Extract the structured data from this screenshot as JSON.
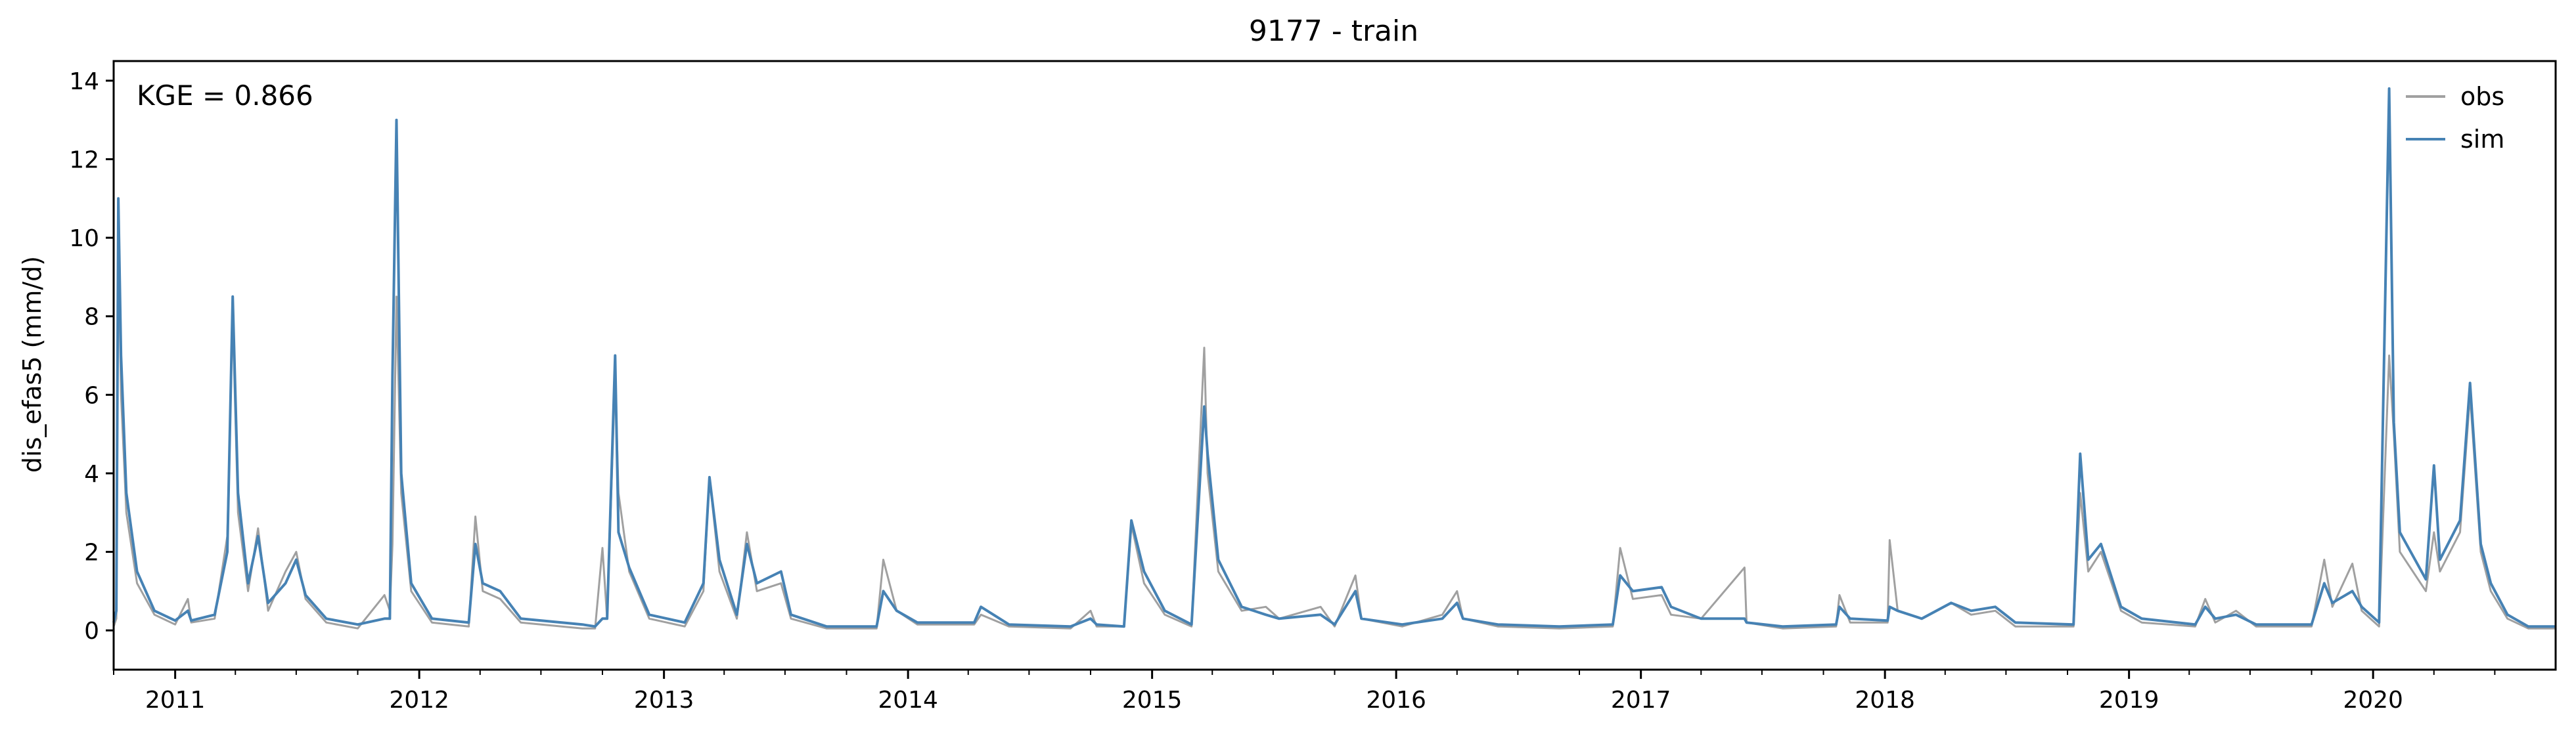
{
  "chart_data": {
    "type": "line",
    "title": "9177 - train",
    "xlabel": "",
    "ylabel": "dis_efas5 (mm/d)",
    "annotation": "KGE = 0.866",
    "x_range": [
      "2010-10-01",
      "2020-09-30"
    ],
    "ylim": [
      -1,
      14.5
    ],
    "y_ticks": [
      0,
      2,
      4,
      6,
      8,
      10,
      12,
      14
    ],
    "x_ticks": [
      "2011",
      "2012",
      "2013",
      "2014",
      "2015",
      "2016",
      "2017",
      "2018",
      "2019",
      "2020"
    ],
    "grid": false,
    "legend_position": "top-right",
    "series": [
      {
        "name": "obs",
        "color": "#a0a0a0",
        "points": [
          [
            "2010-10-01",
            0.1
          ],
          [
            "2010-10-05",
            0.3
          ],
          [
            "2010-10-08",
            10.0
          ],
          [
            "2010-10-12",
            6.0
          ],
          [
            "2010-10-20",
            3.0
          ],
          [
            "2010-11-05",
            1.2
          ],
          [
            "2010-12-01",
            0.4
          ],
          [
            "2011-01-01",
            0.15
          ],
          [
            "2011-01-20",
            0.8
          ],
          [
            "2011-01-25",
            0.2
          ],
          [
            "2011-03-01",
            0.3
          ],
          [
            "2011-03-20",
            2.4
          ],
          [
            "2011-03-28",
            8.0
          ],
          [
            "2011-04-05",
            3.0
          ],
          [
            "2011-04-20",
            1.0
          ],
          [
            "2011-05-05",
            2.6
          ],
          [
            "2011-05-20",
            0.5
          ],
          [
            "2011-06-15",
            1.5
          ],
          [
            "2011-07-01",
            2.0
          ],
          [
            "2011-07-15",
            0.8
          ],
          [
            "2011-08-15",
            0.2
          ],
          [
            "2011-10-01",
            0.05
          ],
          [
            "2011-11-10",
            0.9
          ],
          [
            "2011-11-18",
            0.5
          ],
          [
            "2011-11-22",
            2.2
          ],
          [
            "2011-11-28",
            8.5
          ],
          [
            "2011-12-05",
            3.5
          ],
          [
            "2011-12-20",
            1.0
          ],
          [
            "2012-01-20",
            0.2
          ],
          [
            "2012-03-15",
            0.1
          ],
          [
            "2012-03-25",
            2.9
          ],
          [
            "2012-04-05",
            1.0
          ],
          [
            "2012-05-01",
            0.8
          ],
          [
            "2012-06-01",
            0.2
          ],
          [
            "2012-09-01",
            0.05
          ],
          [
            "2012-09-20",
            0.05
          ],
          [
            "2012-10-01",
            2.1
          ],
          [
            "2012-10-08",
            0.3
          ],
          [
            "2012-10-20",
            6.5
          ],
          [
            "2012-10-25",
            3.5
          ],
          [
            "2012-11-10",
            1.5
          ],
          [
            "2012-12-10",
            0.3
          ],
          [
            "2013-02-01",
            0.1
          ],
          [
            "2013-03-01",
            1.0
          ],
          [
            "2013-03-10",
            3.9
          ],
          [
            "2013-03-25",
            1.5
          ],
          [
            "2013-04-20",
            0.3
          ],
          [
            "2013-05-05",
            2.5
          ],
          [
            "2013-05-20",
            1.0
          ],
          [
            "2013-06-25",
            1.2
          ],
          [
            "2013-07-10",
            0.3
          ],
          [
            "2013-09-01",
            0.05
          ],
          [
            "2013-11-15",
            0.05
          ],
          [
            "2013-11-25",
            1.8
          ],
          [
            "2013-12-15",
            0.5
          ],
          [
            "2014-01-15",
            0.15
          ],
          [
            "2014-04-10",
            0.15
          ],
          [
            "2014-04-20",
            0.4
          ],
          [
            "2014-06-01",
            0.1
          ],
          [
            "2014-09-01",
            0.05
          ],
          [
            "2014-10-01",
            0.5
          ],
          [
            "2014-10-10",
            0.1
          ],
          [
            "2014-11-20",
            0.1
          ],
          [
            "2014-12-01",
            2.7
          ],
          [
            "2014-12-20",
            1.2
          ],
          [
            "2015-01-20",
            0.4
          ],
          [
            "2015-03-01",
            0.1
          ],
          [
            "2015-03-20",
            7.2
          ],
          [
            "2015-03-25",
            4.0
          ],
          [
            "2015-04-10",
            1.5
          ],
          [
            "2015-05-15",
            0.5
          ],
          [
            "2015-06-20",
            0.6
          ],
          [
            "2015-07-10",
            0.3
          ],
          [
            "2015-09-10",
            0.6
          ],
          [
            "2015-10-01",
            0.1
          ],
          [
            "2015-11-01",
            1.4
          ],
          [
            "2015-11-10",
            0.3
          ],
          [
            "2016-01-10",
            0.1
          ],
          [
            "2016-03-10",
            0.4
          ],
          [
            "2016-04-01",
            1.0
          ],
          [
            "2016-04-10",
            0.3
          ],
          [
            "2016-06-01",
            0.1
          ],
          [
            "2016-09-01",
            0.05
          ],
          [
            "2016-11-20",
            0.1
          ],
          [
            "2016-12-01",
            2.1
          ],
          [
            "2016-12-20",
            0.8
          ],
          [
            "2017-02-01",
            0.9
          ],
          [
            "2017-02-15",
            0.4
          ],
          [
            "2017-04-01",
            0.3
          ],
          [
            "2017-06-05",
            1.6
          ],
          [
            "2017-06-08",
            0.2
          ],
          [
            "2017-08-01",
            0.05
          ],
          [
            "2017-10-20",
            0.1
          ],
          [
            "2017-10-25",
            0.9
          ],
          [
            "2017-11-10",
            0.2
          ],
          [
            "2018-01-05",
            0.2
          ],
          [
            "2018-01-08",
            2.3
          ],
          [
            "2018-01-20",
            0.5
          ],
          [
            "2018-02-25",
            0.3
          ],
          [
            "2018-04-10",
            0.7
          ],
          [
            "2018-05-10",
            0.4
          ],
          [
            "2018-06-15",
            0.5
          ],
          [
            "2018-07-15",
            0.1
          ],
          [
            "2018-10-10",
            0.1
          ],
          [
            "2018-10-20",
            3.5
          ],
          [
            "2018-11-01",
            1.5
          ],
          [
            "2018-11-20",
            2.0
          ],
          [
            "2018-12-20",
            0.5
          ],
          [
            "2019-01-20",
            0.2
          ],
          [
            "2019-04-10",
            0.1
          ],
          [
            "2019-04-25",
            0.8
          ],
          [
            "2019-05-10",
            0.2
          ],
          [
            "2019-06-10",
            0.5
          ],
          [
            "2019-07-10",
            0.1
          ],
          [
            "2019-10-01",
            0.1
          ],
          [
            "2019-10-20",
            1.8
          ],
          [
            "2019-11-01",
            0.6
          ],
          [
            "2019-12-01",
            1.7
          ],
          [
            "2019-12-15",
            0.5
          ],
          [
            "2020-01-10",
            0.1
          ],
          [
            "2020-01-25",
            7.0
          ],
          [
            "2020-02-01",
            5.0
          ],
          [
            "2020-02-10",
            2.0
          ],
          [
            "2020-03-20",
            1.0
          ],
          [
            "2020-04-01",
            2.5
          ],
          [
            "2020-04-10",
            1.5
          ],
          [
            "2020-05-10",
            2.5
          ],
          [
            "2020-05-25",
            6.0
          ],
          [
            "2020-06-10",
            2.0
          ],
          [
            "2020-06-25",
            1.0
          ],
          [
            "2020-07-20",
            0.3
          ],
          [
            "2020-08-20",
            0.05
          ],
          [
            "2020-09-30",
            0.05
          ]
        ]
      },
      {
        "name": "sim",
        "color": "#4682b4",
        "points": [
          [
            "2010-10-01",
            0.2
          ],
          [
            "2010-10-05",
            0.5
          ],
          [
            "2010-10-08",
            11.0
          ],
          [
            "2010-10-12",
            7.0
          ],
          [
            "2010-10-20",
            3.5
          ],
          [
            "2010-11-05",
            1.5
          ],
          [
            "2010-12-01",
            0.5
          ],
          [
            "2011-01-01",
            0.25
          ],
          [
            "2011-01-20",
            0.5
          ],
          [
            "2011-01-25",
            0.25
          ],
          [
            "2011-03-01",
            0.4
          ],
          [
            "2011-03-20",
            2.0
          ],
          [
            "2011-03-28",
            8.5
          ],
          [
            "2011-04-05",
            3.5
          ],
          [
            "2011-04-20",
            1.2
          ],
          [
            "2011-05-05",
            2.4
          ],
          [
            "2011-05-20",
            0.7
          ],
          [
            "2011-06-15",
            1.2
          ],
          [
            "2011-07-01",
            1.8
          ],
          [
            "2011-07-15",
            0.9
          ],
          [
            "2011-08-15",
            0.3
          ],
          [
            "2011-10-01",
            0.15
          ],
          [
            "2011-11-10",
            0.3
          ],
          [
            "2011-11-18",
            0.3
          ],
          [
            "2011-11-22",
            6.5
          ],
          [
            "2011-11-28",
            13.0
          ],
          [
            "2011-12-05",
            4.0
          ],
          [
            "2011-12-20",
            1.2
          ],
          [
            "2012-01-20",
            0.3
          ],
          [
            "2012-03-15",
            0.2
          ],
          [
            "2012-03-25",
            2.2
          ],
          [
            "2012-04-05",
            1.2
          ],
          [
            "2012-05-01",
            1.0
          ],
          [
            "2012-06-01",
            0.3
          ],
          [
            "2012-09-01",
            0.15
          ],
          [
            "2012-09-20",
            0.1
          ],
          [
            "2012-10-01",
            0.3
          ],
          [
            "2012-10-08",
            0.3
          ],
          [
            "2012-10-20",
            7.0
          ],
          [
            "2012-10-25",
            2.5
          ],
          [
            "2012-11-10",
            1.6
          ],
          [
            "2012-12-10",
            0.4
          ],
          [
            "2013-02-01",
            0.2
          ],
          [
            "2013-03-01",
            1.2
          ],
          [
            "2013-03-10",
            3.9
          ],
          [
            "2013-03-25",
            1.8
          ],
          [
            "2013-04-20",
            0.4
          ],
          [
            "2013-05-05",
            2.2
          ],
          [
            "2013-05-20",
            1.2
          ],
          [
            "2013-06-25",
            1.5
          ],
          [
            "2013-07-10",
            0.4
          ],
          [
            "2013-09-01",
            0.1
          ],
          [
            "2013-11-15",
            0.1
          ],
          [
            "2013-11-25",
            1.0
          ],
          [
            "2013-12-15",
            0.5
          ],
          [
            "2014-01-15",
            0.2
          ],
          [
            "2014-04-10",
            0.2
          ],
          [
            "2014-04-20",
            0.6
          ],
          [
            "2014-06-01",
            0.15
          ],
          [
            "2014-09-01",
            0.1
          ],
          [
            "2014-10-01",
            0.3
          ],
          [
            "2014-10-10",
            0.15
          ],
          [
            "2014-11-20",
            0.1
          ],
          [
            "2014-12-01",
            2.8
          ],
          [
            "2014-12-20",
            1.5
          ],
          [
            "2015-01-20",
            0.5
          ],
          [
            "2015-03-01",
            0.15
          ],
          [
            "2015-03-20",
            5.7
          ],
          [
            "2015-03-25",
            4.5
          ],
          [
            "2015-04-10",
            1.8
          ],
          [
            "2015-05-15",
            0.6
          ],
          [
            "2015-06-20",
            0.4
          ],
          [
            "2015-07-10",
            0.3
          ],
          [
            "2015-09-10",
            0.4
          ],
          [
            "2015-10-01",
            0.15
          ],
          [
            "2015-11-01",
            1.0
          ],
          [
            "2015-11-10",
            0.3
          ],
          [
            "2016-01-10",
            0.15
          ],
          [
            "2016-03-10",
            0.3
          ],
          [
            "2016-04-01",
            0.7
          ],
          [
            "2016-04-10",
            0.3
          ],
          [
            "2016-06-01",
            0.15
          ],
          [
            "2016-09-01",
            0.1
          ],
          [
            "2016-11-20",
            0.15
          ],
          [
            "2016-12-01",
            1.4
          ],
          [
            "2016-12-20",
            1.0
          ],
          [
            "2017-02-01",
            1.1
          ],
          [
            "2017-02-15",
            0.6
          ],
          [
            "2017-04-01",
            0.3
          ],
          [
            "2017-06-05",
            0.3
          ],
          [
            "2017-06-08",
            0.2
          ],
          [
            "2017-08-01",
            0.1
          ],
          [
            "2017-10-20",
            0.15
          ],
          [
            "2017-10-25",
            0.6
          ],
          [
            "2017-11-10",
            0.3
          ],
          [
            "2018-01-05",
            0.25
          ],
          [
            "2018-01-08",
            0.6
          ],
          [
            "2018-01-20",
            0.5
          ],
          [
            "2018-02-25",
            0.3
          ],
          [
            "2018-04-10",
            0.7
          ],
          [
            "2018-05-10",
            0.5
          ],
          [
            "2018-06-15",
            0.6
          ],
          [
            "2018-07-15",
            0.2
          ],
          [
            "2018-10-10",
            0.15
          ],
          [
            "2018-10-20",
            4.5
          ],
          [
            "2018-11-01",
            1.8
          ],
          [
            "2018-11-20",
            2.2
          ],
          [
            "2018-12-20",
            0.6
          ],
          [
            "2019-01-20",
            0.3
          ],
          [
            "2019-04-10",
            0.15
          ],
          [
            "2019-04-25",
            0.6
          ],
          [
            "2019-05-10",
            0.3
          ],
          [
            "2019-06-10",
            0.4
          ],
          [
            "2019-07-10",
            0.15
          ],
          [
            "2019-10-01",
            0.15
          ],
          [
            "2019-10-20",
            1.2
          ],
          [
            "2019-11-01",
            0.7
          ],
          [
            "2019-12-01",
            1.0
          ],
          [
            "2019-12-15",
            0.6
          ],
          [
            "2020-01-10",
            0.2
          ],
          [
            "2020-01-25",
            13.8
          ],
          [
            "2020-02-01",
            5.3
          ],
          [
            "2020-02-10",
            2.5
          ],
          [
            "2020-03-20",
            1.3
          ],
          [
            "2020-04-01",
            4.2
          ],
          [
            "2020-04-10",
            1.8
          ],
          [
            "2020-05-10",
            2.8
          ],
          [
            "2020-05-25",
            6.3
          ],
          [
            "2020-06-10",
            2.2
          ],
          [
            "2020-06-25",
            1.2
          ],
          [
            "2020-07-20",
            0.4
          ],
          [
            "2020-08-20",
            0.1
          ],
          [
            "2020-09-30",
            0.1
          ]
        ]
      }
    ]
  }
}
